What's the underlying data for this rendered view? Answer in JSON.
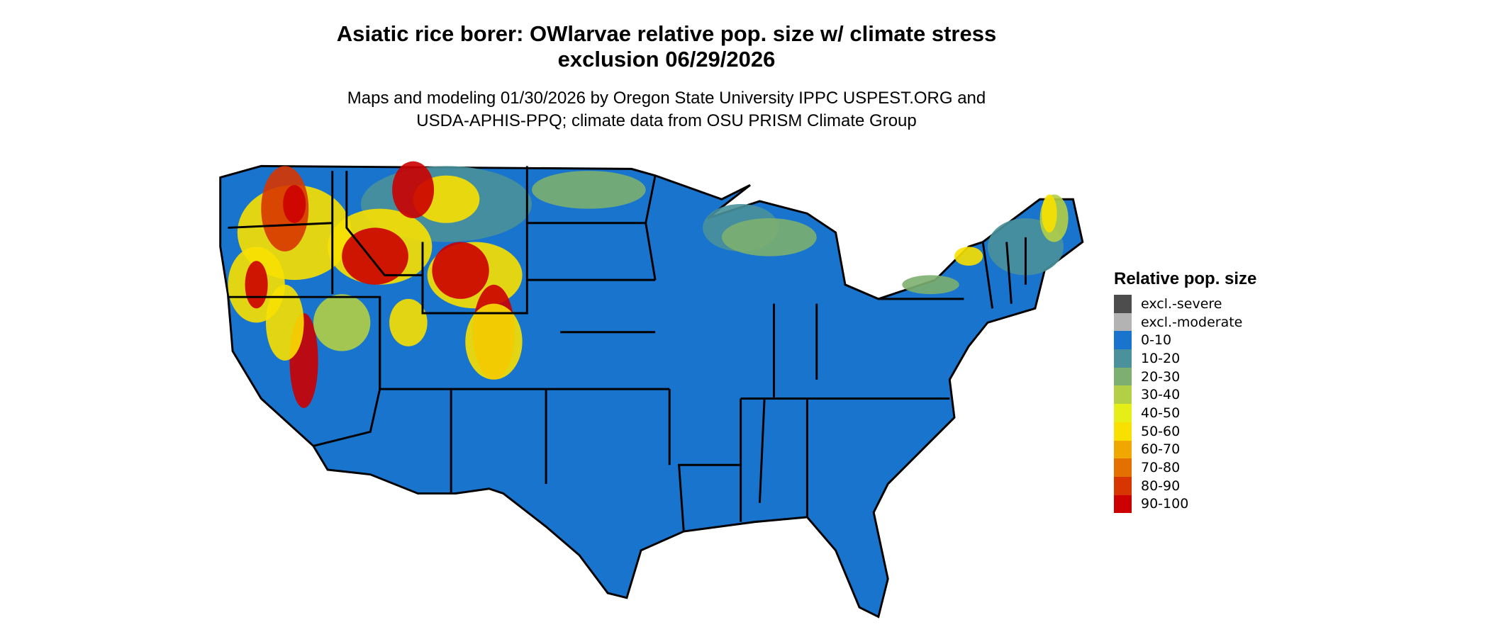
{
  "title_line1": "Asiatic rice borer: OWlarvae relative pop. size w/ climate stress",
  "title_line2": "exclusion 06/29/2026",
  "subtitle_line1": "Maps and modeling 01/30/2026 by Oregon State University IPPC USPEST.ORG and",
  "subtitle_line2": "USDA-APHIS-PPQ; climate data from OSU PRISM Climate Group",
  "map": {
    "region": "Contiguous United States",
    "dominant_class": "0-10",
    "state_border_color": "#000000"
  },
  "legend": {
    "title": "Relative pop. size",
    "items": [
      {
        "label": "excl.-severe",
        "color": "#4d4d4d"
      },
      {
        "label": "excl.-moderate",
        "color": "#b3b3b3"
      },
      {
        "label": "0-10",
        "color": "#1874cd"
      },
      {
        "label": "10-20",
        "color": "#4a919b"
      },
      {
        "label": "20-30",
        "color": "#7caf70"
      },
      {
        "label": "30-40",
        "color": "#b2cf46"
      },
      {
        "label": "40-50",
        "color": "#e5ee16"
      },
      {
        "label": "50-60",
        "color": "#f8e000"
      },
      {
        "label": "60-70",
        "color": "#f0a800"
      },
      {
        "label": "70-80",
        "color": "#e37000"
      },
      {
        "label": "80-90",
        "color": "#d83600"
      },
      {
        "label": "90-100",
        "color": "#cc0000"
      }
    ]
  }
}
